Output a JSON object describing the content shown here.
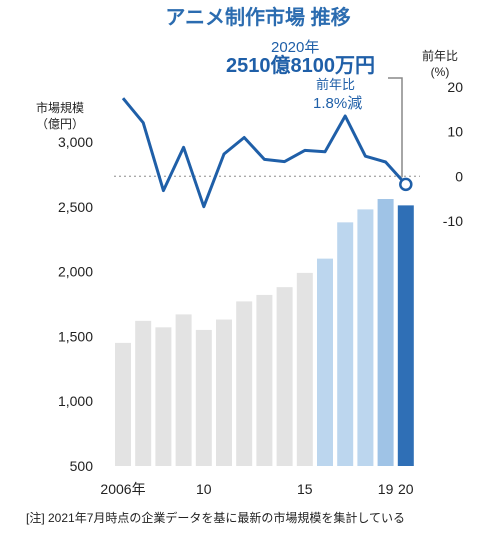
{
  "title": "アニメ制作市場 推移",
  "colors": {
    "bar_gray": "#e3e3e3",
    "bar_light_blue": "#bcd6ee",
    "bar_mid_blue": "#9fc3e6",
    "bar_dark_blue": "#2f6fb6",
    "line": "#1f5fa8",
    "annotation": "#1f5fa8",
    "title": "#2b6cb0",
    "zero_line": "#aaaaaa",
    "leader": "#888888"
  },
  "annotation": {
    "year_label": "2020年",
    "value_label": "2510億8100万円",
    "yoy_title": "前年比",
    "yoy_value": "1.8%減"
  },
  "note": "[注] 2021年7月時点の企業データを基に最新の市場規模を集計している",
  "chart_data": {
    "type": "bar+line",
    "x": [
      2006,
      2007,
      2008,
      2009,
      2010,
      2011,
      2012,
      2013,
      2014,
      2015,
      2016,
      2017,
      2018,
      2019,
      2020
    ],
    "x_tick_labels": [
      {
        "x": 2006,
        "label": "2006年"
      },
      {
        "x": 2010,
        "label": "10"
      },
      {
        "x": 2015,
        "label": "15"
      },
      {
        "x": 2019,
        "label": "19"
      },
      {
        "x": 2020,
        "label": "20"
      }
    ],
    "series": [
      {
        "name": "市場規模（億円）",
        "type": "bar",
        "axis": "left",
        "values": [
          1450,
          1620,
          1570,
          1670,
          1550,
          1630,
          1770,
          1820,
          1880,
          1990,
          2100,
          2380,
          2480,
          2560,
          2511
        ],
        "color_groups": [
          "gray",
          "gray",
          "gray",
          "gray",
          "gray",
          "gray",
          "gray",
          "gray",
          "gray",
          "gray",
          "light_blue",
          "light_blue",
          "light_blue",
          "mid_blue",
          "dark_blue"
        ]
      },
      {
        "name": "前年比（%）",
        "type": "line",
        "axis": "right",
        "values": [
          17.5,
          12,
          -3.2,
          6.5,
          -6.8,
          5,
          8.7,
          3.8,
          3.3,
          5.8,
          5.5,
          13.5,
          4.5,
          3.2,
          -1.8
        ]
      }
    ],
    "left_axis": {
      "label_lines": [
        "市場規模",
        "（億円）"
      ],
      "ylim": [
        500,
        3000
      ],
      "ticks": [
        500,
        1000,
        1500,
        2000,
        2500,
        3000
      ],
      "tick_labels": [
        "500",
        "1,000",
        "1,500",
        "2,000",
        "2,500",
        "3,000"
      ]
    },
    "right_axis": {
      "label_lines": [
        "前年比",
        "(%)"
      ],
      "ylim": [
        -10,
        20
      ],
      "ticks": [
        -10,
        0,
        10,
        20
      ],
      "tick_labels": [
        "-10",
        "0",
        "10",
        "20"
      ]
    },
    "zero_line": true,
    "grid": false
  }
}
